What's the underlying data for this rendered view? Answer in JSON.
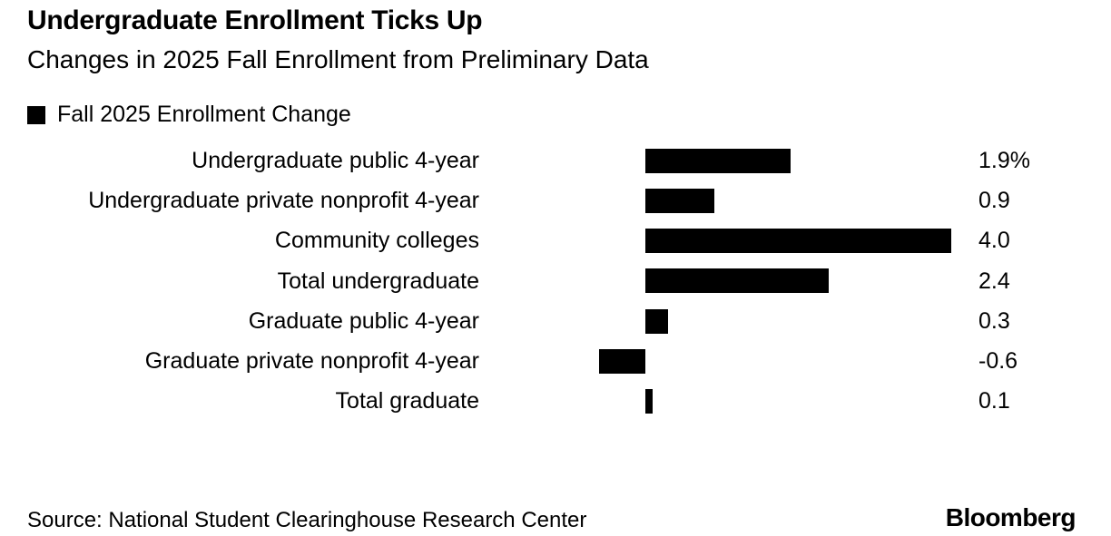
{
  "header": {
    "title": "Undergraduate Enrollment Ticks Up",
    "subtitle": "Changes in 2025 Fall Enrollment from Preliminary Data"
  },
  "legend": {
    "label": "Fall 2025 Enrollment Change",
    "swatch_color": "#000000"
  },
  "chart_data": {
    "type": "bar",
    "orientation": "horizontal",
    "title": "Undergraduate Enrollment Ticks Up",
    "subtitle": "Changes in 2025 Fall Enrollment from Preliminary Data",
    "legend_entries": [
      "Fall 2025 Enrollment Change"
    ],
    "unit": "percent change",
    "categories": [
      "Undergraduate public 4-year",
      "Undergraduate private nonprofit 4-year",
      "Community colleges",
      "Total undergraduate",
      "Graduate public 4-year",
      "Graduate private nonprofit 4-year",
      "Total graduate"
    ],
    "values": [
      1.9,
      0.9,
      4.0,
      2.4,
      0.3,
      -0.6,
      0.1
    ],
    "value_labels": [
      "1.9%",
      "0.9",
      "4.0",
      "2.4",
      "0.3",
      "-0.6",
      "0.1"
    ],
    "xlim": [
      -0.6,
      4.0
    ],
    "bar_color": "#000000",
    "grid": false,
    "legend_position": "top-left"
  },
  "footer": {
    "source": "Source: National Student Clearinghouse Research Center",
    "brand": "Bloomberg"
  }
}
